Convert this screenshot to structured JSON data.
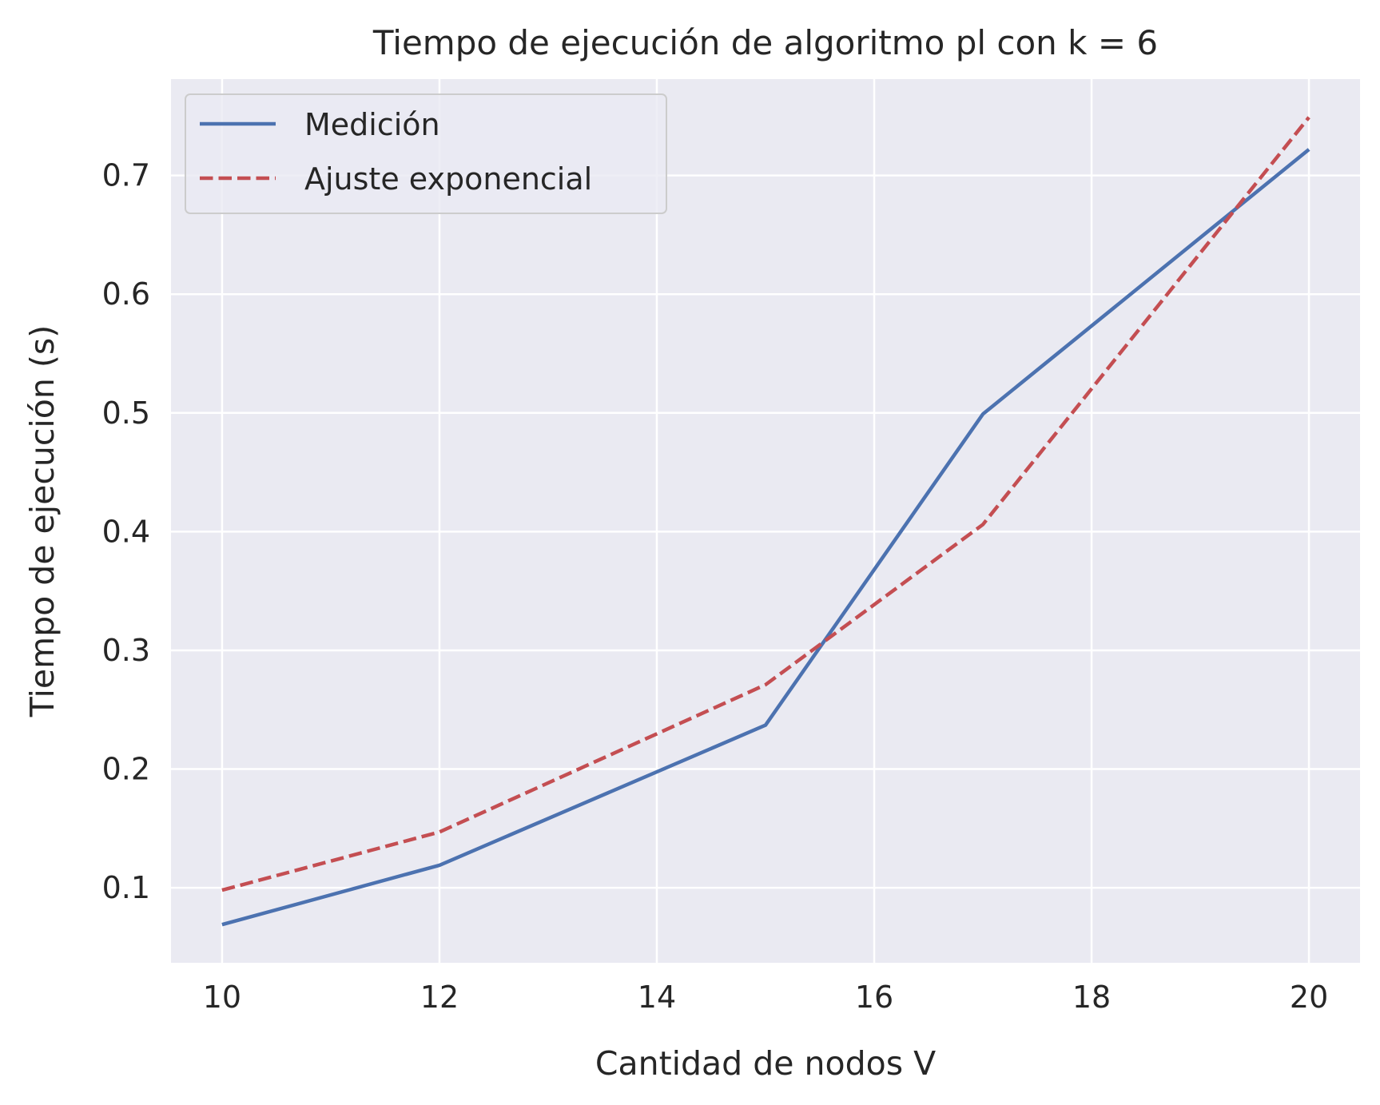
{
  "chart_data": {
    "type": "line",
    "title": "Tiempo de ejecución de algoritmo pl con k = 6",
    "xlabel": "Cantidad de nodos V",
    "ylabel": "Tiempo de ejecución (s)",
    "xlim": [
      9.53,
      20.47
    ],
    "ylim": [
      0.0368,
      0.7812
    ],
    "xticks": [
      10,
      12,
      14,
      16,
      18,
      20
    ],
    "xtick_labels": [
      "10",
      "12",
      "14",
      "16",
      "18",
      "20"
    ],
    "yticks": [
      0.1,
      0.2,
      0.3,
      0.4,
      0.5,
      0.6,
      0.7
    ],
    "ytick_labels": [
      "0.1",
      "0.2",
      "0.3",
      "0.4",
      "0.5",
      "0.6",
      "0.7"
    ],
    "grid": true,
    "legend_position": "upper-left",
    "series": [
      {
        "name": "Medición",
        "style": "solid",
        "color": "#4c72b0",
        "x": [
          10,
          12,
          15,
          17,
          20
        ],
        "y": [
          0.069,
          0.119,
          0.237,
          0.499,
          0.722
        ]
      },
      {
        "name": "Ajuste exponencial",
        "style": "dashed",
        "color": "#c44e52",
        "x": [
          10,
          12,
          15,
          17,
          20
        ],
        "y": [
          0.098,
          0.147,
          0.271,
          0.406,
          0.749
        ]
      }
    ]
  },
  "colors": {
    "plot_background": "#eaeaf2",
    "grid": "#ffffff",
    "text": "#262626"
  }
}
